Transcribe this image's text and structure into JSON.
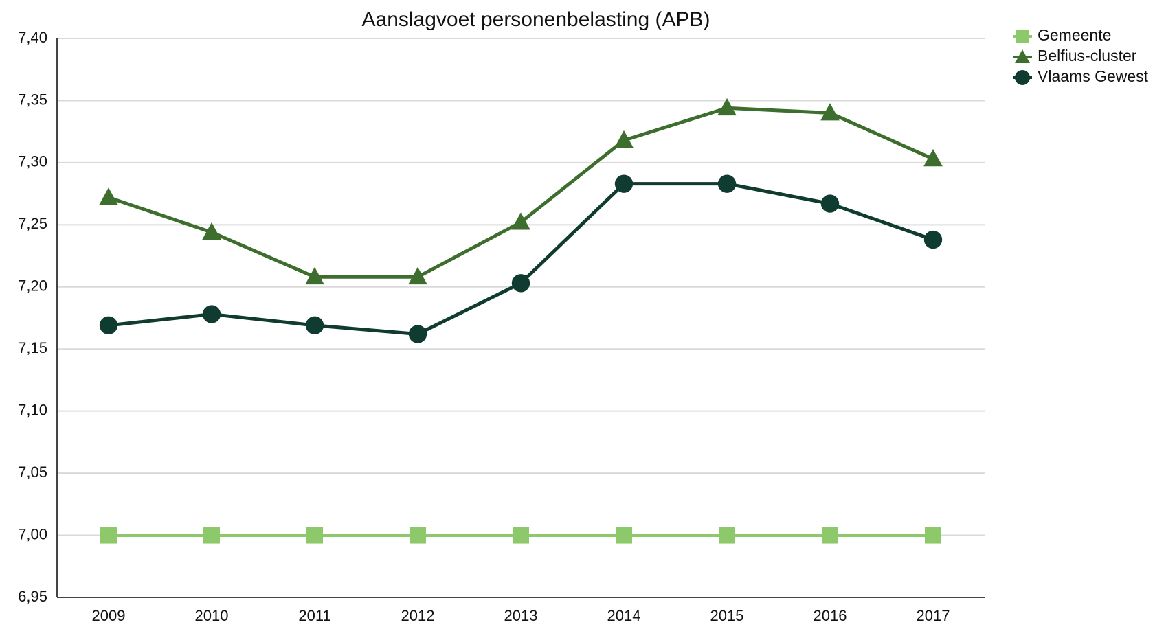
{
  "chart_data": {
    "type": "line",
    "title": "Aanslagvoet personenbelasting (APB)",
    "categories": [
      "2009",
      "2010",
      "2011",
      "2012",
      "2013",
      "2014",
      "2015",
      "2016",
      "2017"
    ],
    "series": [
      {
        "name": "Gemeente",
        "color": "#8dc86a",
        "marker": "square",
        "values": [
          7.0,
          7.0,
          7.0,
          7.0,
          7.0,
          7.0,
          7.0,
          7.0,
          7.0
        ]
      },
      {
        "name": "Belfius-cluster",
        "color": "#3d6e2e",
        "marker": "triangle",
        "values": [
          7.272,
          7.244,
          7.208,
          7.208,
          7.252,
          7.318,
          7.344,
          7.34,
          7.303
        ]
      },
      {
        "name": "Vlaams Gewest",
        "color": "#0f3b30",
        "marker": "circle",
        "values": [
          7.169,
          7.178,
          7.169,
          7.162,
          7.203,
          7.283,
          7.283,
          7.267,
          7.238
        ]
      }
    ],
    "ylim": [
      6.95,
      7.4
    ],
    "yticks": [
      {
        "value": 6.95,
        "label": "6,95"
      },
      {
        "value": 7.0,
        "label": "7,00"
      },
      {
        "value": 7.05,
        "label": "7,05"
      },
      {
        "value": 7.1,
        "label": "7,10"
      },
      {
        "value": 7.15,
        "label": "7,15"
      },
      {
        "value": 7.2,
        "label": "7,20"
      },
      {
        "value": 7.25,
        "label": "7,25"
      },
      {
        "value": 7.3,
        "label": "7,30"
      },
      {
        "value": 7.35,
        "label": "7,35"
      },
      {
        "value": 7.4,
        "label": "7,40"
      }
    ],
    "grid": true,
    "legend": "top-right"
  }
}
